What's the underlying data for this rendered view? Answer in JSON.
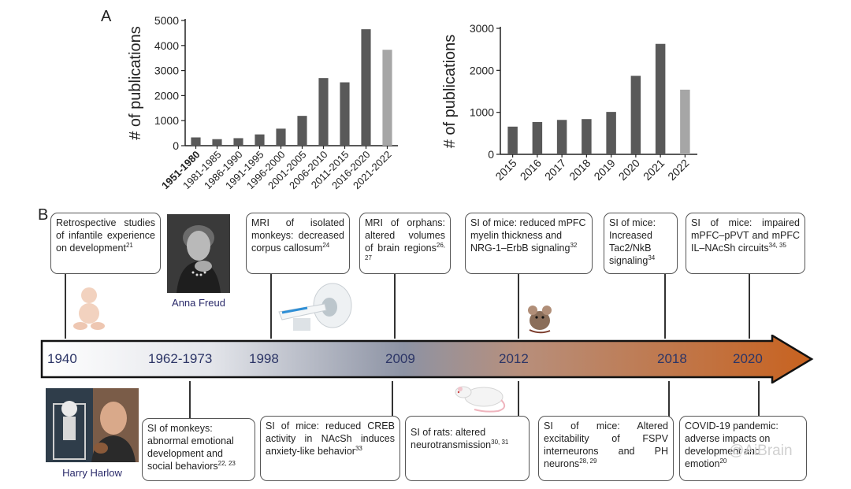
{
  "panel_a_label": "A",
  "panel_b_label": "B",
  "chart_data": [
    {
      "type": "bar",
      "categories": [
        "1951-1980",
        "1981-1985",
        "1986-1990",
        "1991-1995",
        "1996-2000",
        "2001-2005",
        "2006-2010",
        "2011-2015",
        "2016-2020",
        "2021-2022"
      ],
      "values": [
        330,
        260,
        300,
        450,
        680,
        1190,
        2700,
        2530,
        4650,
        3830
      ],
      "highlight_last": true,
      "ylabel": "# of publications",
      "ylim": [
        0,
        5000
      ],
      "yticks": [
        0,
        1000,
        2000,
        3000,
        4000,
        5000
      ],
      "bold_first_tick": true
    },
    {
      "type": "bar",
      "categories": [
        "2015",
        "2016",
        "2017",
        "2018",
        "2019",
        "2020",
        "2021",
        "2022"
      ],
      "values": [
        660,
        770,
        820,
        840,
        1010,
        1870,
        2630,
        1540
      ],
      "highlight_last": true,
      "ylabel": "# of publications",
      "ylim": [
        0,
        3000
      ],
      "yticks": [
        0,
        1000,
        2000,
        3000
      ]
    }
  ],
  "colors": {
    "bar": "#595959",
    "bar_last": "#a6a6a6",
    "arrow_end": "#c8621f",
    "year_text": "#2c3566"
  },
  "timeline": {
    "years": [
      "1940",
      "1962-1973",
      "1998",
      "2009",
      "2012",
      "2018",
      "2020"
    ],
    "top_events": [
      {
        "text": "Retrospective studies of infantile experience on development",
        "ref": "21"
      },
      {
        "text": "MRI of isolated monkeys: decreased corpus callosum",
        "ref": "24"
      },
      {
        "text": "MRI of orphans: altered volumes of brain regions",
        "ref": "26, 27"
      },
      {
        "text": "SI of mice: reduced mPFC myelin thickness and NRG-1–ErbB signaling",
        "ref": "32"
      },
      {
        "text": "SI of mice: Increased Tac2/NkB signaling",
        "ref": "34"
      },
      {
        "text": "SI of mice: impaired mPFC–pPVT and mPFC IL–NAcSh circuits",
        "ref": "34, 35"
      }
    ],
    "bottom_events": [
      {
        "text": "SI of monkeys: abnormal emotional development and social behaviors",
        "ref": "22, 23"
      },
      {
        "text": "SI of mice: reduced CREB activity in NAcSh induces anxiety-like behavior",
        "ref": "33"
      },
      {
        "text": "SI of rats: altered neurotransmission",
        "ref": "30, 31"
      },
      {
        "text": "SI of mice: Altered excitability of FSPV interneurons and PH neurons",
        "ref": "28, 29"
      },
      {
        "text": "COVID-19 pandemic: adverse impacts on development and emotion",
        "ref": "20"
      }
    ],
    "photos": [
      {
        "caption": "Anna Freud",
        "icon": "portrait-icon"
      },
      {
        "caption": "Harry Harlow",
        "icon": "portrait-icon"
      }
    ],
    "illustrations": [
      "baby-icon",
      "mri-scanner-icon",
      "mouse-icon",
      "rat-icon"
    ]
  },
  "watermark": "@AiBrain"
}
